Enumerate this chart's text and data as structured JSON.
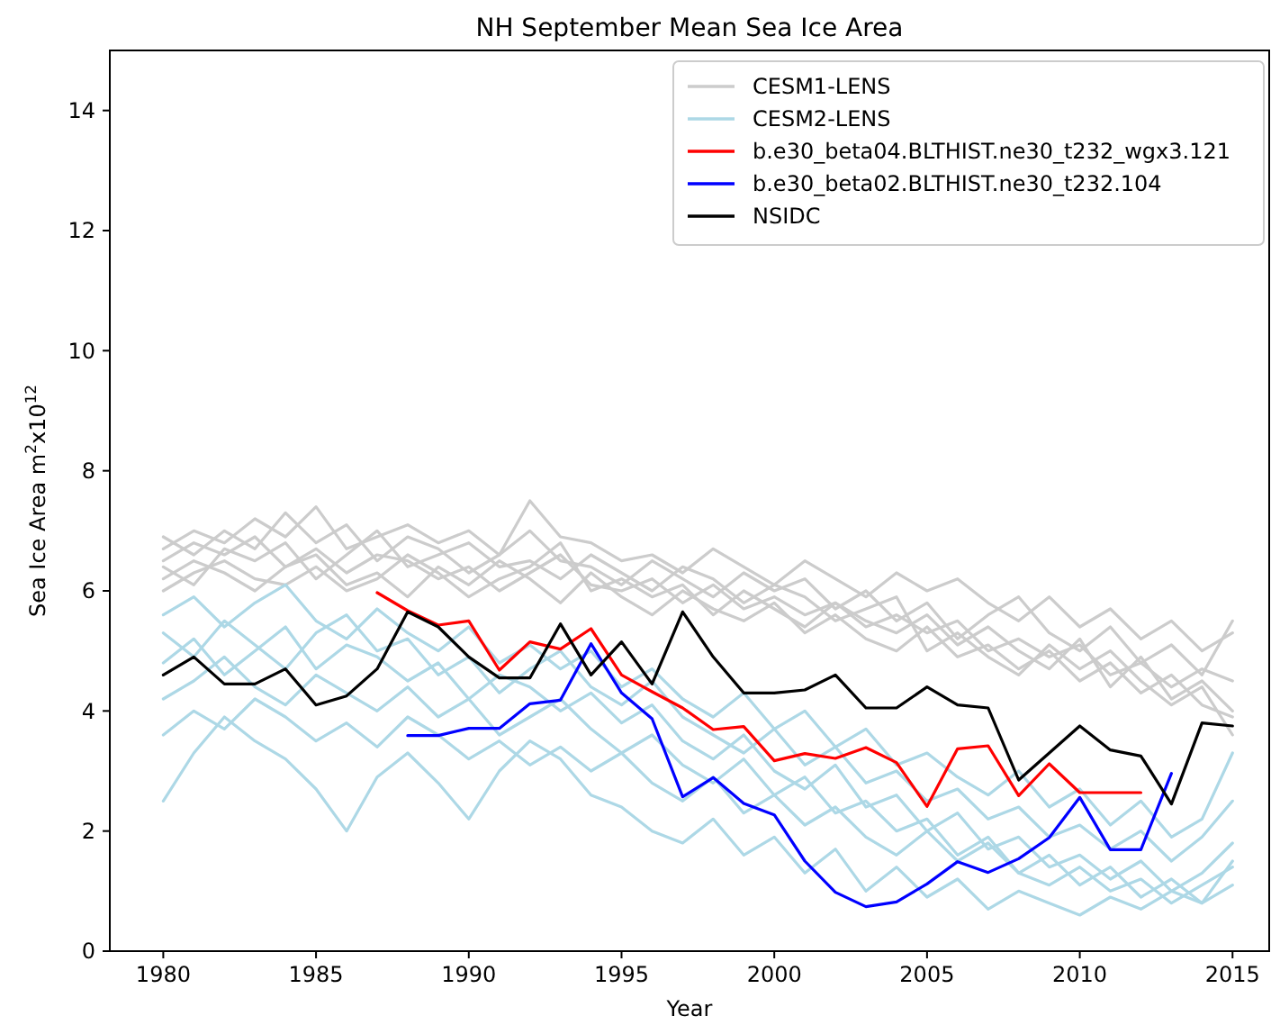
{
  "chart_data": {
    "type": "line",
    "title": "NH September Mean Sea Ice Area",
    "xlabel": "Year",
    "ylabel": "Sea Ice Area m$^{2}$x10$^{12}$",
    "x": [
      1980,
      1981,
      1982,
      1983,
      1984,
      1985,
      1986,
      1987,
      1988,
      1989,
      1990,
      1991,
      1992,
      1993,
      1994,
      1995,
      1996,
      1997,
      1998,
      1999,
      2000,
      2001,
      2002,
      2003,
      2004,
      2005,
      2006,
      2007,
      2008,
      2009,
      2010,
      2011,
      2012,
      2013,
      2014,
      2015
    ],
    "xlim": [
      1978.25,
      2016.2
    ],
    "xticks": [
      1980,
      1985,
      1990,
      1995,
      2000,
      2005,
      2010,
      2015
    ],
    "ylim": [
      0,
      15
    ],
    "yticks": [
      0,
      2,
      4,
      6,
      8,
      10,
      12,
      14
    ],
    "grid": false,
    "legend": "top right",
    "line_style": "solid",
    "marker": "none",
    "series": [
      {
        "name": "CESM1-LENS",
        "color": "#cccccc",
        "values": [
          6.5,
          6.8,
          6.6,
          6.9,
          6.4,
          6.7,
          6.3,
          6.6,
          6.5,
          6.2,
          6.4,
          6.0,
          6.3,
          6.6,
          6.1,
          6.0,
          6.2,
          5.8,
          6.1,
          5.7,
          5.9,
          5.6,
          5.8,
          5.4,
          5.6,
          5.3,
          5.5,
          5.0,
          5.2,
          4.9,
          5.1,
          4.6,
          4.8,
          4.4,
          4.7,
          4.5
        ]
      },
      {
        "color": "#cccccc",
        "values": [
          6.9,
          6.6,
          7.0,
          6.7,
          7.3,
          6.8,
          7.1,
          6.5,
          6.9,
          6.7,
          6.3,
          6.6,
          7.0,
          6.5,
          6.4,
          6.1,
          6.5,
          6.2,
          5.9,
          6.3,
          6.0,
          6.2,
          5.7,
          6.0,
          5.5,
          5.8,
          5.2,
          5.6,
          5.9,
          5.3,
          5.0,
          5.4,
          4.8,
          5.1,
          4.6,
          5.5
        ]
      },
      {
        "color": "#cccccc",
        "values": [
          6.2,
          6.5,
          6.3,
          6.0,
          6.4,
          6.6,
          6.1,
          6.3,
          5.9,
          6.4,
          6.1,
          6.5,
          6.2,
          5.8,
          6.3,
          5.9,
          5.6,
          6.0,
          5.7,
          5.5,
          5.8,
          5.3,
          5.6,
          5.2,
          5.0,
          5.4,
          4.9,
          5.1,
          4.7,
          5.0,
          4.5,
          4.8,
          4.3,
          4.6,
          4.1,
          3.9
        ]
      },
      {
        "color": "#cccccc",
        "values": [
          6.7,
          7.0,
          6.8,
          7.2,
          6.9,
          7.4,
          6.7,
          6.9,
          7.1,
          6.8,
          7.0,
          6.6,
          7.5,
          6.9,
          6.8,
          6.5,
          6.6,
          6.3,
          6.7,
          6.4,
          6.1,
          6.5,
          6.2,
          5.9,
          6.3,
          6.0,
          6.2,
          5.8,
          5.5,
          5.9,
          5.4,
          5.7,
          5.2,
          5.5,
          5.0,
          5.3
        ]
      },
      {
        "color": "#cccccc",
        "values": [
          6.0,
          6.3,
          6.5,
          6.2,
          6.1,
          6.4,
          6.0,
          6.2,
          6.6,
          6.3,
          5.9,
          6.2,
          6.4,
          6.8,
          6.0,
          6.2,
          5.9,
          6.1,
          5.6,
          6.0,
          5.7,
          5.4,
          5.8,
          5.5,
          5.3,
          5.6,
          5.1,
          5.4,
          5.0,
          4.7,
          5.2,
          4.4,
          4.9,
          4.2,
          4.5,
          4.0
        ]
      },
      {
        "color": "#cccccc",
        "values": [
          6.4,
          6.1,
          6.7,
          6.5,
          6.8,
          6.2,
          6.6,
          7.0,
          6.4,
          6.6,
          6.8,
          6.4,
          6.5,
          6.2,
          6.6,
          6.3,
          6.0,
          6.4,
          6.2,
          5.8,
          6.1,
          5.9,
          5.5,
          5.7,
          5.9,
          5.0,
          5.3,
          4.9,
          4.6,
          5.1,
          4.7,
          5.0,
          4.5,
          4.1,
          4.4,
          3.6
        ]
      },
      {
        "name": "CESM2-LENS",
        "color": "#add8e6",
        "values": [
          4.8,
          5.2,
          4.6,
          5.0,
          5.4,
          4.7,
          5.1,
          4.9,
          4.5,
          4.8,
          4.2,
          4.6,
          4.4,
          4.0,
          4.3,
          3.8,
          4.1,
          3.5,
          3.2,
          3.6,
          3.0,
          2.7,
          3.1,
          2.4,
          2.6,
          2.0,
          2.3,
          1.7,
          1.9,
          1.4,
          1.6,
          1.2,
          1.5,
          1.0,
          1.3,
          1.8
        ]
      },
      {
        "color": "#add8e6",
        "values": [
          4.2,
          4.5,
          4.9,
          4.4,
          4.1,
          4.6,
          4.3,
          4.0,
          4.4,
          3.9,
          4.2,
          3.6,
          3.9,
          4.2,
          3.7,
          3.3,
          3.6,
          3.1,
          2.8,
          3.2,
          2.6,
          2.9,
          2.3,
          2.5,
          2.0,
          2.2,
          1.6,
          1.9,
          1.3,
          1.6,
          1.1,
          1.4,
          0.9,
          1.2,
          0.8,
          1.1
        ]
      },
      {
        "color": "#add8e6",
        "values": [
          5.3,
          4.9,
          5.5,
          5.1,
          4.7,
          5.3,
          5.6,
          5.0,
          5.2,
          4.6,
          4.9,
          4.3,
          4.7,
          5.0,
          4.4,
          4.1,
          4.5,
          3.9,
          3.6,
          3.3,
          3.7,
          3.1,
          3.4,
          2.8,
          3.0,
          2.5,
          2.7,
          2.2,
          2.4,
          1.9,
          2.1,
          1.7,
          2.0,
          1.5,
          1.9,
          2.5
        ]
      },
      {
        "color": "#add8e6",
        "values": [
          3.6,
          4.0,
          3.7,
          4.2,
          3.9,
          3.5,
          3.8,
          3.4,
          3.9,
          3.6,
          3.2,
          3.5,
          3.1,
          3.4,
          3.0,
          3.3,
          2.8,
          2.5,
          2.9,
          2.3,
          2.6,
          2.1,
          2.4,
          1.9,
          1.6,
          2.0,
          1.5,
          1.8,
          1.3,
          1.1,
          1.4,
          1.0,
          1.2,
          0.8,
          1.1,
          1.4
        ]
      },
      {
        "color": "#add8e6",
        "values": [
          5.6,
          5.9,
          5.4,
          5.8,
          6.1,
          5.5,
          5.2,
          5.7,
          5.3,
          5.0,
          5.4,
          4.8,
          5.1,
          4.7,
          5.0,
          4.4,
          4.7,
          4.2,
          3.9,
          4.3,
          3.7,
          4.0,
          3.4,
          3.7,
          3.1,
          3.3,
          2.9,
          2.6,
          3.0,
          2.4,
          2.7,
          2.1,
          2.5,
          1.9,
          2.2,
          3.3
        ]
      },
      {
        "color": "#add8e6",
        "values": [
          2.5,
          3.3,
          3.9,
          3.5,
          3.2,
          2.7,
          2.0,
          2.9,
          3.3,
          2.8,
          2.2,
          3.0,
          3.5,
          3.2,
          2.6,
          2.4,
          2.0,
          1.8,
          2.2,
          1.6,
          1.9,
          1.3,
          1.7,
          1.0,
          1.4,
          0.9,
          1.2,
          0.7,
          1.0,
          0.8,
          0.6,
          0.9,
          0.7,
          1.0,
          0.8,
          1.5
        ]
      },
      {
        "name": "b.e30_beta04.BLTHIST.ne30_t232_wgx3.121",
        "color": "#ff0000",
        "x": [
          1987,
          1988,
          1989,
          1990,
          1991,
          1992,
          1993,
          1994,
          1995,
          1996,
          1997,
          1998,
          1999,
          2000,
          2001,
          2002,
          2003,
          2004,
          2005,
          2006,
          2007,
          2008,
          2009,
          2010,
          2011,
          2012
        ],
        "values": [
          5.97,
          5.67,
          5.43,
          5.5,
          4.68,
          5.15,
          5.03,
          5.37,
          4.6,
          4.32,
          4.05,
          3.69,
          3.74,
          3.17,
          3.29,
          3.21,
          3.39,
          3.14,
          2.41,
          3.37,
          3.42,
          2.59,
          3.12,
          2.64,
          2.64,
          2.64
        ]
      },
      {
        "name": "b.e30_beta02.BLTHIST.ne30_t232.104",
        "color": "#0000ff",
        "x": [
          1988,
          1989,
          1990,
          1991,
          1992,
          1993,
          1994,
          1995,
          1996,
          1997,
          1998,
          1999,
          2000,
          2001,
          2002,
          2003,
          2004,
          2005,
          2006,
          2007,
          2008,
          2009,
          2010,
          2011,
          2012,
          2013
        ],
        "values": [
          3.59,
          3.59,
          3.71,
          3.71,
          4.12,
          4.18,
          5.12,
          4.3,
          3.87,
          2.57,
          2.89,
          2.46,
          2.27,
          1.5,
          0.98,
          0.74,
          0.82,
          1.12,
          1.49,
          1.31,
          1.54,
          1.89,
          2.56,
          1.69,
          1.69,
          2.96
        ]
      },
      {
        "name": "NSIDC",
        "color": "#000000",
        "values": [
          4.6,
          4.9,
          4.45,
          4.45,
          4.7,
          4.1,
          4.25,
          4.7,
          5.65,
          5.4,
          4.9,
          4.55,
          4.55,
          5.45,
          4.6,
          5.15,
          4.45,
          5.65,
          4.9,
          4.3,
          4.3,
          4.35,
          4.6,
          4.05,
          4.05,
          4.4,
          4.1,
          4.05,
          2.85,
          3.3,
          3.75,
          3.35,
          3.25,
          2.45,
          3.8,
          3.75
        ]
      }
    ]
  }
}
